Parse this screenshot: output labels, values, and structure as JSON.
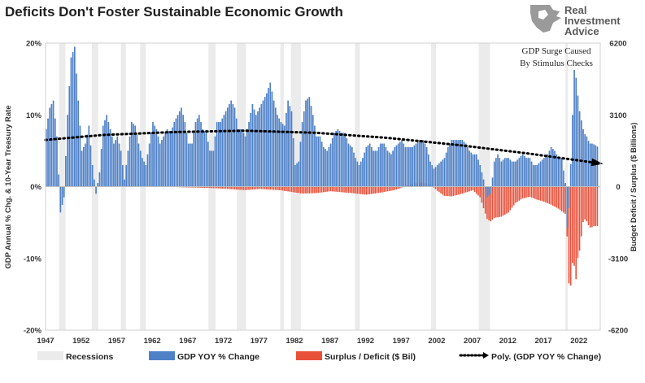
{
  "title": "Deficits Don't Foster Sustainable Economic Growth",
  "logo": {
    "lines": [
      "Real",
      "Investment",
      "Advice"
    ]
  },
  "annotation": {
    "line1": "GDP Surge Caused",
    "line2": "By Stimulus Checks"
  },
  "colors": {
    "gdp": "#4f81c7",
    "deficit": "#e8503a",
    "recession": "#ebebeb",
    "trend": "#000000"
  },
  "chart_data": {
    "type": "bar",
    "title": "Deficits Don't Foster Sustainable Economic Growth",
    "x_ticks": [
      "1947",
      "1952",
      "1957",
      "1962",
      "1967",
      "1972",
      "1977",
      "1982",
      "1987",
      "1992",
      "1997",
      "2002",
      "2007",
      "2012",
      "2017",
      "2022"
    ],
    "x_range": [
      1947,
      2025
    ],
    "y_left": {
      "label": "GDP Annual % Chg. & 10-Year Treasury Rate",
      "range": [
        -20,
        20
      ],
      "ticks": [
        20,
        10,
        0,
        -10,
        -20
      ],
      "tick_labels": [
        "20%",
        "10%",
        "0%",
        "-10%",
        "-20%"
      ]
    },
    "y_right": {
      "label": "Budget Deficit / Surplus ($ Billions)",
      "range": [
        -6200,
        6200
      ],
      "ticks": [
        6200,
        3100,
        0,
        -3100,
        -6200
      ],
      "tick_labels": [
        "6200",
        "3100",
        "0",
        "-3100",
        "-6200"
      ]
    },
    "recessions": [
      [
        1948.9,
        1949.8
      ],
      [
        1953.5,
        1954.4
      ],
      [
        1957.6,
        1958.3
      ],
      [
        1960.3,
        1961.1
      ],
      [
        1969.9,
        1970.9
      ],
      [
        1973.9,
        1975.2
      ],
      [
        1980.0,
        1980.5
      ],
      [
        1981.5,
        1982.9
      ],
      [
        1990.5,
        1991.2
      ],
      [
        2001.2,
        2001.9
      ],
      [
        2007.9,
        2009.5
      ],
      [
        2020.1,
        2020.4
      ]
    ],
    "series": [
      {
        "name": "GDP YOY % Change",
        "kind": "bar",
        "axis": "left",
        "color": "#4f81c7",
        "points": [
          [
            1947,
            8
          ],
          [
            1947.5,
            11
          ],
          [
            1948,
            12
          ],
          [
            1948.5,
            7
          ],
          [
            1949,
            -3.6
          ],
          [
            1949.5,
            -1.5
          ],
          [
            1950,
            10
          ],
          [
            1950.5,
            18
          ],
          [
            1951,
            19.5
          ],
          [
            1951.5,
            12
          ],
          [
            1952,
            5
          ],
          [
            1952.5,
            6
          ],
          [
            1953,
            8.5
          ],
          [
            1953.5,
            3
          ],
          [
            1954,
            -1
          ],
          [
            1954.5,
            2
          ],
          [
            1955,
            8.5
          ],
          [
            1955.5,
            10
          ],
          [
            1956,
            8
          ],
          [
            1956.5,
            6
          ],
          [
            1957,
            7
          ],
          [
            1957.5,
            5
          ],
          [
            1958,
            1
          ],
          [
            1958.5,
            5
          ],
          [
            1959,
            9
          ],
          [
            1959.5,
            8.5
          ],
          [
            1960,
            6
          ],
          [
            1960.5,
            4
          ],
          [
            1961,
            3
          ],
          [
            1961.5,
            6
          ],
          [
            1962,
            9
          ],
          [
            1962.5,
            8
          ],
          [
            1963,
            6
          ],
          [
            1963.5,
            7
          ],
          [
            1964,
            8
          ],
          [
            1964.5,
            7.5
          ],
          [
            1965,
            9
          ],
          [
            1965.5,
            10
          ],
          [
            1966,
            11
          ],
          [
            1966.5,
            9
          ],
          [
            1967,
            6
          ],
          [
            1967.5,
            6
          ],
          [
            1968,
            9
          ],
          [
            1968.5,
            10
          ],
          [
            1969,
            8
          ],
          [
            1969.5,
            7.5
          ],
          [
            1970,
            5
          ],
          [
            1970.5,
            5
          ],
          [
            1971,
            9
          ],
          [
            1971.5,
            9
          ],
          [
            1972,
            10
          ],
          [
            1972.5,
            11
          ],
          [
            1973,
            12
          ],
          [
            1973.5,
            11
          ],
          [
            1974,
            8
          ],
          [
            1974.5,
            8
          ],
          [
            1975,
            7
          ],
          [
            1975.5,
            9
          ],
          [
            1976,
            11.5
          ],
          [
            1976.5,
            10
          ],
          [
            1977,
            11
          ],
          [
            1977.5,
            12
          ],
          [
            1978,
            13
          ],
          [
            1978.5,
            14.5
          ],
          [
            1979,
            12
          ],
          [
            1979.5,
            10
          ],
          [
            1980,
            9
          ],
          [
            1980.5,
            8.5
          ],
          [
            1981,
            12
          ],
          [
            1981.5,
            10.5
          ],
          [
            1982,
            3
          ],
          [
            1982.5,
            3.5
          ],
          [
            1983,
            9
          ],
          [
            1983.5,
            12
          ],
          [
            1984,
            12.5
          ],
          [
            1984.5,
            10
          ],
          [
            1985,
            7
          ],
          [
            1985.5,
            7
          ],
          [
            1986,
            5.5
          ],
          [
            1986.5,
            5
          ],
          [
            1987,
            6
          ],
          [
            1987.5,
            7.5
          ],
          [
            1988,
            8
          ],
          [
            1988.5,
            7.5
          ],
          [
            1989,
            7.5
          ],
          [
            1989.5,
            6
          ],
          [
            1990,
            5.5
          ],
          [
            1990.5,
            4
          ],
          [
            1991,
            3
          ],
          [
            1991.5,
            4
          ],
          [
            1992,
            5.5
          ],
          [
            1992.5,
            6
          ],
          [
            1993,
            5
          ],
          [
            1993.5,
            5
          ],
          [
            1994,
            6
          ],
          [
            1994.5,
            6
          ],
          [
            1995,
            5
          ],
          [
            1995.5,
            4.5
          ],
          [
            1996,
            5.5
          ],
          [
            1996.5,
            6
          ],
          [
            1997,
            6.5
          ],
          [
            1997.5,
            5.5
          ],
          [
            1998,
            5.5
          ],
          [
            1998.5,
            5.5
          ],
          [
            1999,
            6
          ],
          [
            1999.5,
            6.5
          ],
          [
            2000,
            6.5
          ],
          [
            2000.5,
            5.5
          ],
          [
            2001,
            3.5
          ],
          [
            2001.5,
            2.5
          ],
          [
            2002,
            3
          ],
          [
            2002.5,
            3.5
          ],
          [
            2003,
            4
          ],
          [
            2003.5,
            5.5
          ],
          [
            2004,
            6.5
          ],
          [
            2004.5,
            6.5
          ],
          [
            2005,
            6.5
          ],
          [
            2005.5,
            6.5
          ],
          [
            2006,
            6
          ],
          [
            2006.5,
            5
          ],
          [
            2007,
            4.5
          ],
          [
            2007.5,
            4.5
          ],
          [
            2008,
            3
          ],
          [
            2008.5,
            1
          ],
          [
            2009,
            -1.5
          ],
          [
            2009.5,
            -1
          ],
          [
            2010,
            3.5
          ],
          [
            2010.5,
            4.5
          ],
          [
            2011,
            3.5
          ],
          [
            2011.5,
            4
          ],
          [
            2012,
            4
          ],
          [
            2012.5,
            3.5
          ],
          [
            2013,
            3.5
          ],
          [
            2013.5,
            4
          ],
          [
            2014,
            4.5
          ],
          [
            2014.5,
            4
          ],
          [
            2015,
            4
          ],
          [
            2015.5,
            3
          ],
          [
            2016,
            3
          ],
          [
            2016.5,
            3.5
          ],
          [
            2017,
            4
          ],
          [
            2017.5,
            4.5
          ],
          [
            2018,
            5.5
          ],
          [
            2018.5,
            5
          ],
          [
            2019,
            4
          ],
          [
            2019.5,
            4
          ],
          [
            2020,
            0.5
          ],
          [
            2020.3,
            -7
          ],
          [
            2020.6,
            -1
          ],
          [
            2021,
            10
          ],
          [
            2021.3,
            17.5
          ],
          [
            2021.6,
            14
          ],
          [
            2022,
            10.5
          ],
          [
            2022.3,
            9
          ],
          [
            2022.6,
            7.5
          ],
          [
            2023,
            7
          ],
          [
            2023.4,
            6
          ],
          [
            2023.8,
            6
          ],
          [
            2024.2,
            5.8
          ],
          [
            2024.6,
            5.5
          ]
        ]
      },
      {
        "name": "Surplus / Deficit ($ Bil)",
        "kind": "bar",
        "axis": "right",
        "color": "#e8503a",
        "points": [
          [
            1947,
            10
          ],
          [
            1950,
            -5
          ],
          [
            1955,
            -15
          ],
          [
            1960,
            -10
          ],
          [
            1965,
            -20
          ],
          [
            1970,
            -60
          ],
          [
            1972,
            -90
          ],
          [
            1975,
            -150
          ],
          [
            1977,
            -100
          ],
          [
            1980,
            -160
          ],
          [
            1983,
            -300
          ],
          [
            1985,
            -280
          ],
          [
            1987,
            -200
          ],
          [
            1990,
            -280
          ],
          [
            1992,
            -350
          ],
          [
            1994,
            -260
          ],
          [
            1996,
            -150
          ],
          [
            1997,
            -40
          ],
          [
            1998,
            80
          ],
          [
            1999,
            150
          ],
          [
            2000,
            200
          ],
          [
            2001,
            100
          ],
          [
            2002,
            -180
          ],
          [
            2003,
            -400
          ],
          [
            2004,
            -420
          ],
          [
            2005,
            -350
          ],
          [
            2006,
            -250
          ],
          [
            2007,
            -160
          ],
          [
            2008,
            -460
          ],
          [
            2009,
            -1400
          ],
          [
            2009.5,
            -1500
          ],
          [
            2010,
            -1350
          ],
          [
            2011,
            -1300
          ],
          [
            2012,
            -1120
          ],
          [
            2013,
            -700
          ],
          [
            2014,
            -510
          ],
          [
            2015,
            -440
          ],
          [
            2016,
            -560
          ],
          [
            2017,
            -650
          ],
          [
            2018,
            -780
          ],
          [
            2019,
            -950
          ],
          [
            2020.1,
            -1200
          ],
          [
            2020.4,
            -3100
          ],
          [
            2020.6,
            -5250
          ],
          [
            2020.9,
            -3300
          ],
          [
            2021.2,
            -3300
          ],
          [
            2021.5,
            -4000
          ],
          [
            2021.8,
            -2900
          ],
          [
            2022.1,
            -2700
          ],
          [
            2022.4,
            -1600
          ],
          [
            2022.7,
            -1400
          ],
          [
            2023.0,
            -1500
          ],
          [
            2023.3,
            -1700
          ],
          [
            2023.6,
            -1800
          ],
          [
            2023.9,
            -1700
          ],
          [
            2024.2,
            -1700
          ]
        ]
      },
      {
        "name": "Poly. (GDP YOY % Change)",
        "kind": "trend",
        "axis": "left",
        "color": "#000000",
        "points": [
          [
            1947,
            6.5
          ],
          [
            1955,
            7.2
          ],
          [
            1965,
            7.6
          ],
          [
            1975,
            7.8
          ],
          [
            1985,
            7.5
          ],
          [
            1995,
            6.8
          ],
          [
            2005,
            5.8
          ],
          [
            2015,
            4.6
          ],
          [
            2024.5,
            3.3
          ]
        ]
      }
    ],
    "legend": [
      "Recessions",
      "GDP YOY % Change",
      "Surplus / Deficit ($ Bil)",
      "Poly. (GDP YOY % Change)"
    ],
    "legend_position": "bottom",
    "grid": false
  }
}
